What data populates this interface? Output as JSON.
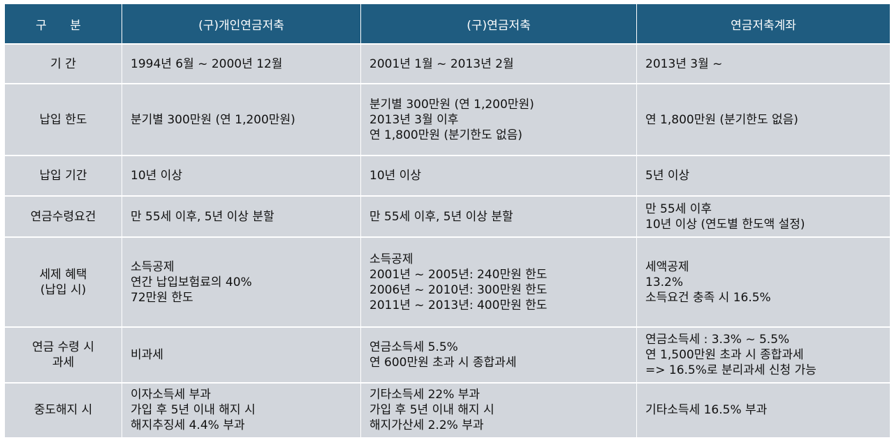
{
  "header": {
    "col0": "구  분",
    "col1": "(구)개인연금저축",
    "col2": "(구)연금저축",
    "col3": "연금저축계좌"
  },
  "rows": [
    {
      "label": [
        "기  간"
      ],
      "c1": [
        "1994년 6월 ~ 2000년 12월"
      ],
      "c2": [
        "2001년 1월 ~ 2013년 2월"
      ],
      "c3": [
        "2013년 3월 ~"
      ]
    },
    {
      "label": [
        "납입 한도"
      ],
      "c1": [
        "분기별 300만원 (연 1,200만원)"
      ],
      "c2": [
        "분기별 300만원 (연 1,200만원)",
        "2013년 3월 이후",
        "연 1,800만원 (분기한도 없음)"
      ],
      "c3": [
        "연 1,800만원  (분기한도 없음)"
      ]
    },
    {
      "label": [
        "납입 기간"
      ],
      "c1": [
        "10년 이상"
      ],
      "c2": [
        "10년 이상"
      ],
      "c3": [
        "5년 이상"
      ]
    },
    {
      "label": [
        "연금수령요건"
      ],
      "c1": [
        "만 55세 이후, 5년 이상 분할"
      ],
      "c2": [
        "만 55세 이후, 5년 이상 분할"
      ],
      "c3": [
        "만 55세 이후",
        "10년 이상 (연도별 한도액 설정)"
      ]
    },
    {
      "label": [
        "세제 혜택",
        "(납입 시)"
      ],
      "c1": [
        "소득공제",
        "연간 납입보험료의 40%",
        "72만원 한도"
      ],
      "c2": [
        "소득공제",
        "2001년 ~ 2005년: 240만원 한도",
        "2006년 ~ 2010년: 300만원 한도",
        "2011년 ~ 2013년: 400만원 한도"
      ],
      "c3": [
        "세액공제",
        "13.2%",
        "소득요건 충족 시 16.5%"
      ]
    },
    {
      "label": [
        "연금 수령 시",
        "과세"
      ],
      "c1": [
        "비과세"
      ],
      "c2": [
        "연금소득세 5.5%",
        "연 600만원 초과 시 종합과세"
      ],
      "c3": [
        "연금소득세 : 3.3% ~ 5.5%",
        "연 1,500만원 초과 시 종합과세",
        "=> 16.5%로 분리과세 신청 가능"
      ]
    },
    {
      "label": [
        "중도해지 시"
      ],
      "c1": [
        "이자소득세 부과",
        "가입 후 5년 이내 해지 시",
        "해지추징세 4.4% 부과"
      ],
      "c2": [
        "기타소득세 22% 부과",
        "가입 후 5년 이내 해지 시",
        "해지가산세 2.2% 부과"
      ],
      "c3": [
        "기타소득세 16.5% 부과"
      ]
    }
  ],
  "colors": {
    "header_bg": "#1f5c80",
    "cell_bg": "#d2d6dc"
  }
}
